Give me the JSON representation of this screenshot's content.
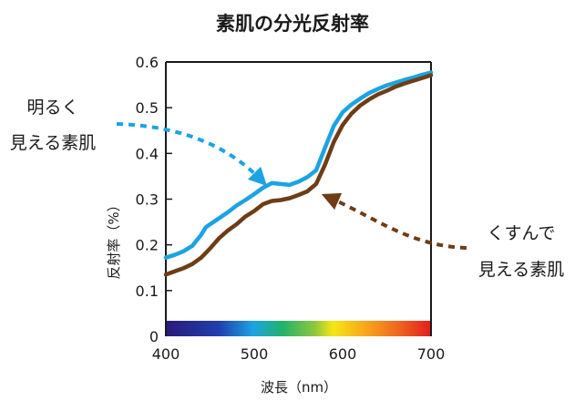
{
  "chart_data": {
    "type": "line",
    "title": "素肌の分光反射率",
    "xlabel": "波長（nm）",
    "ylabel": "反射率（%）",
    "xlim": [
      400,
      700
    ],
    "ylim": [
      0,
      0.6
    ],
    "x_ticks": [
      "400",
      "500",
      "600",
      "700"
    ],
    "y_ticks": [
      "0",
      "0.1",
      "0.2",
      "0.3",
      "0.4",
      "0.5",
      "0.6"
    ],
    "grid": false,
    "spectrum_bar": true,
    "series": [
      {
        "name": "明るく見える素肌",
        "color": "#1ba3e3",
        "x": [
          400,
          410,
          420,
          430,
          440,
          445,
          450,
          460,
          470,
          480,
          490,
          500,
          510,
          520,
          530,
          540,
          550,
          560,
          570,
          580,
          590,
          600,
          610,
          620,
          630,
          640,
          650,
          660,
          670,
          680,
          690,
          700
        ],
        "y": [
          0.172,
          0.178,
          0.186,
          0.198,
          0.222,
          0.238,
          0.245,
          0.258,
          0.271,
          0.286,
          0.298,
          0.311,
          0.325,
          0.335,
          0.333,
          0.331,
          0.338,
          0.348,
          0.363,
          0.412,
          0.46,
          0.49,
          0.507,
          0.52,
          0.532,
          0.541,
          0.549,
          0.555,
          0.561,
          0.566,
          0.572,
          0.577
        ]
      },
      {
        "name": "くすんで見える素肌",
        "color": "#6e3d16",
        "x": [
          400,
          410,
          420,
          430,
          440,
          450,
          460,
          470,
          480,
          490,
          500,
          510,
          520,
          530,
          540,
          550,
          560,
          570,
          580,
          590,
          600,
          610,
          620,
          630,
          640,
          650,
          660,
          670,
          680,
          690,
          700
        ],
        "y": [
          0.135,
          0.142,
          0.149,
          0.158,
          0.172,
          0.192,
          0.214,
          0.231,
          0.245,
          0.262,
          0.274,
          0.289,
          0.296,
          0.298,
          0.302,
          0.309,
          0.317,
          0.333,
          0.375,
          0.425,
          0.462,
          0.487,
          0.505,
          0.518,
          0.529,
          0.537,
          0.546,
          0.553,
          0.559,
          0.565,
          0.571
        ]
      }
    ],
    "annotations": [
      {
        "series": 0,
        "lines": [
          "明るく",
          "見える素肌"
        ],
        "color": "#1ba3e3",
        "points_to_x": 524
      },
      {
        "series": 1,
        "lines": [
          "くすんで",
          "見える素肌"
        ],
        "color": "#6e3d16",
        "points_to_x": 560
      }
    ]
  }
}
